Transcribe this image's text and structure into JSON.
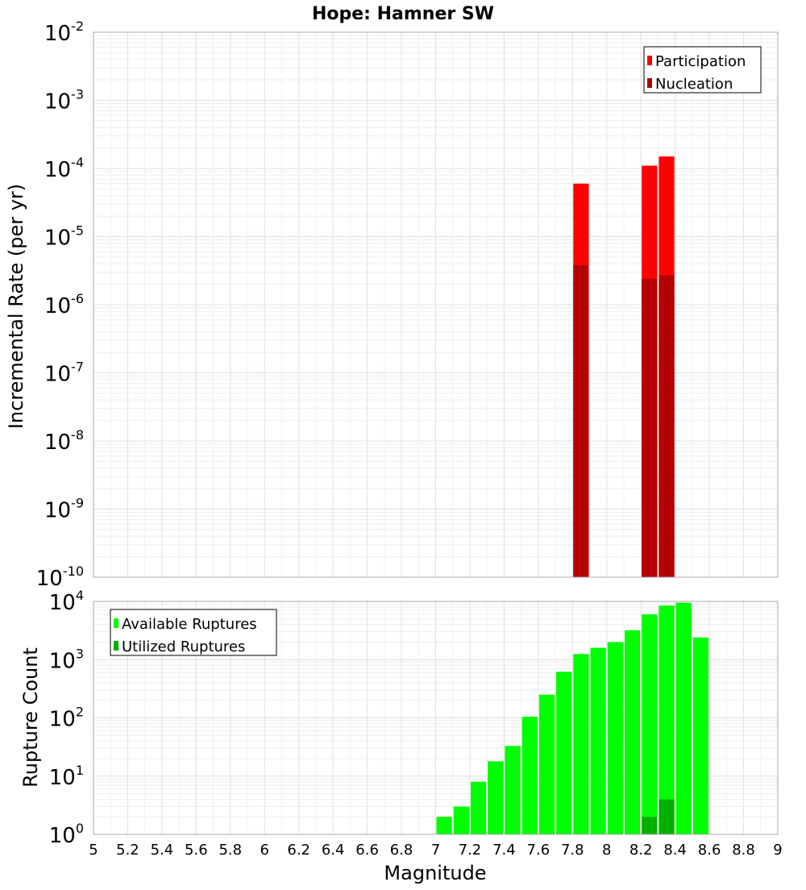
{
  "chart_data": [
    {
      "type": "bar",
      "title": "Hope: Hamner SW",
      "xlabel": "Magnitude",
      "ylabel": "Incremental Rate (per yr)",
      "yscale": "log",
      "ylim_exp": [
        -10,
        -2
      ],
      "xlim": [
        5,
        9
      ],
      "legend_position": "top-right",
      "legend": [
        "Participation",
        "Nucleation"
      ],
      "series": [
        {
          "name": "Participation",
          "color": "#ff0000",
          "points": [
            [
              7.85,
              6e-05
            ],
            [
              8.25,
              0.00011
            ],
            [
              8.35,
              0.00015
            ]
          ]
        },
        {
          "name": "Nucleation",
          "color": "#b30000",
          "points": [
            [
              7.85,
              3.8e-06
            ],
            [
              8.25,
              2.4e-06
            ],
            [
              8.35,
              2.7e-06
            ]
          ]
        }
      ]
    },
    {
      "type": "bar",
      "xlabel": "Magnitude",
      "ylabel": "Rupture Count",
      "yscale": "log",
      "ylim_exp": [
        0,
        4
      ],
      "xlim": [
        5,
        9
      ],
      "legend_position": "top-left",
      "legend": [
        "Available Ruptures",
        "Utilized Ruptures"
      ],
      "series": [
        {
          "name": "Available Ruptures",
          "color": "#00ff00",
          "points": [
            [
              6.65,
              1
            ],
            [
              6.85,
              1
            ],
            [
              7.05,
              2
            ],
            [
              7.15,
              3
            ],
            [
              7.25,
              8
            ],
            [
              7.35,
              18
            ],
            [
              7.45,
              33
            ],
            [
              7.55,
              105
            ],
            [
              7.65,
              250
            ],
            [
              7.75,
              620
            ],
            [
              7.85,
              1250
            ],
            [
              7.95,
              1600
            ],
            [
              8.05,
              2000
            ],
            [
              8.15,
              3200
            ],
            [
              8.25,
              6000
            ],
            [
              8.35,
              8500
            ],
            [
              8.45,
              9500
            ],
            [
              8.55,
              2400
            ]
          ]
        },
        {
          "name": "Utilized Ruptures",
          "color": "#00b000",
          "points": [
            [
              7.85,
              1
            ],
            [
              8.25,
              2
            ],
            [
              8.35,
              4
            ]
          ]
        }
      ]
    }
  ],
  "x_ticks": [
    "5",
    "5.2",
    "5.4",
    "5.6",
    "5.8",
    "6",
    "6.2",
    "6.4",
    "6.6",
    "6.8",
    "7",
    "7.2",
    "7.4",
    "7.6",
    "7.8",
    "8",
    "8.2",
    "8.4",
    "8.6",
    "8.8",
    "9"
  ],
  "top_y_ticks": [
    {
      "base": "10",
      "exp": "-2"
    },
    {
      "base": "10",
      "exp": "-3"
    },
    {
      "base": "10",
      "exp": "-4"
    },
    {
      "base": "10",
      "exp": "-5"
    },
    {
      "base": "10",
      "exp": "-6"
    },
    {
      "base": "10",
      "exp": "-7"
    },
    {
      "base": "10",
      "exp": "-8"
    },
    {
      "base": "10",
      "exp": "-9"
    },
    {
      "base": "10",
      "exp": "-10"
    }
  ],
  "bottom_y_ticks": [
    {
      "base": "10",
      "exp": "4"
    },
    {
      "base": "10",
      "exp": "3"
    },
    {
      "base": "10",
      "exp": "2"
    },
    {
      "base": "10",
      "exp": "1"
    },
    {
      "base": "10",
      "exp": "0"
    }
  ]
}
